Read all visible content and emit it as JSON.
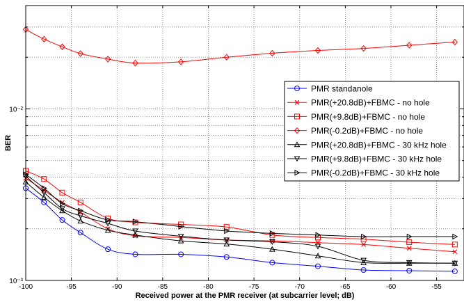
{
  "chart_data": {
    "type": "line",
    "xlabel": "Received power at the PMR receiver (at subcarrier level; dB)",
    "ylabel": "BER",
    "x_scale": "linear",
    "y_scale": "log",
    "xlim": [
      -100,
      -52
    ],
    "ylim": [
      0.001,
      0.04
    ],
    "grid": true,
    "legend_position": "right",
    "x_ticks": [
      -100,
      -95,
      -90,
      -85,
      -80,
      -75,
      -70,
      -65,
      -60,
      -55
    ],
    "y_tick_labels": [
      {
        "value": 0.01,
        "label": "10⁻²"
      },
      {
        "value": 0.001,
        "label": "10⁻³"
      }
    ],
    "x": [
      -100,
      -98,
      -96,
      -94,
      -91,
      -88,
      -83,
      -78,
      -73,
      -68,
      -63,
      -58,
      -53
    ],
    "series": [
      {
        "name": "PMR standanole",
        "color": "#0000ff",
        "marker": "circle",
        "values": [
          0.00345,
          0.00285,
          0.00225,
          0.0019,
          0.00152,
          0.00142,
          0.00142,
          0.00137,
          0.00127,
          0.00121,
          0.00115,
          0.00114,
          0.00113
        ]
      },
      {
        "name": "PMR(+20.8dB)+FBMC - no hole",
        "color": "#ff0000",
        "marker": "x",
        "values": [
          0.00395,
          0.00335,
          0.00285,
          0.0025,
          0.002,
          0.00182,
          0.00178,
          0.00172,
          0.0017,
          0.00166,
          0.00162,
          0.00154,
          0.00147
        ]
      },
      {
        "name": "PMR(+9.8dB)+FBMC - no hole",
        "color": "#ff0000",
        "marker": "square",
        "values": [
          0.00435,
          0.0039,
          0.00325,
          0.00285,
          0.0023,
          0.00218,
          0.00212,
          0.00205,
          0.00184,
          0.00178,
          0.00174,
          0.00167,
          0.00162
        ]
      },
      {
        "name": "PMR(-0.2dB)+FBMC - no hole",
        "color": "#ff0000",
        "marker": "diamond",
        "values": [
          0.029,
          0.0255,
          0.023,
          0.021,
          0.0195,
          0.0185,
          0.0188,
          0.02,
          0.0211,
          0.0219,
          0.0225,
          0.0235,
          0.0245
        ]
      },
      {
        "name": "PMR(+20.8dB)+FBMC - 30 kHz hole",
        "color": "#000000",
        "marker": "triangle-up",
        "values": [
          0.00375,
          0.00305,
          0.00255,
          0.00222,
          0.00196,
          0.00184,
          0.0017,
          0.00163,
          0.00152,
          0.00139,
          0.00127,
          0.00126,
          0.00126
        ]
      },
      {
        "name": "PMR(+9.8dB)+FBMC - 30 kHz hole",
        "color": "#000000",
        "marker": "triangle-down",
        "values": [
          0.00405,
          0.00325,
          0.00262,
          0.00238,
          0.00215,
          0.00194,
          0.00181,
          0.00172,
          0.00168,
          0.00158,
          0.00131,
          0.00127,
          0.00126
        ]
      },
      {
        "name": "PMR(-0.2dB)+FBMC - 30 kHz hole",
        "color": "#000000",
        "marker": "triangle-right",
        "values": [
          0.00415,
          0.00345,
          0.0028,
          0.00255,
          0.00225,
          0.0022,
          0.00206,
          0.00194,
          0.00188,
          0.00184,
          0.0018,
          0.0018,
          0.0018
        ]
      }
    ]
  }
}
